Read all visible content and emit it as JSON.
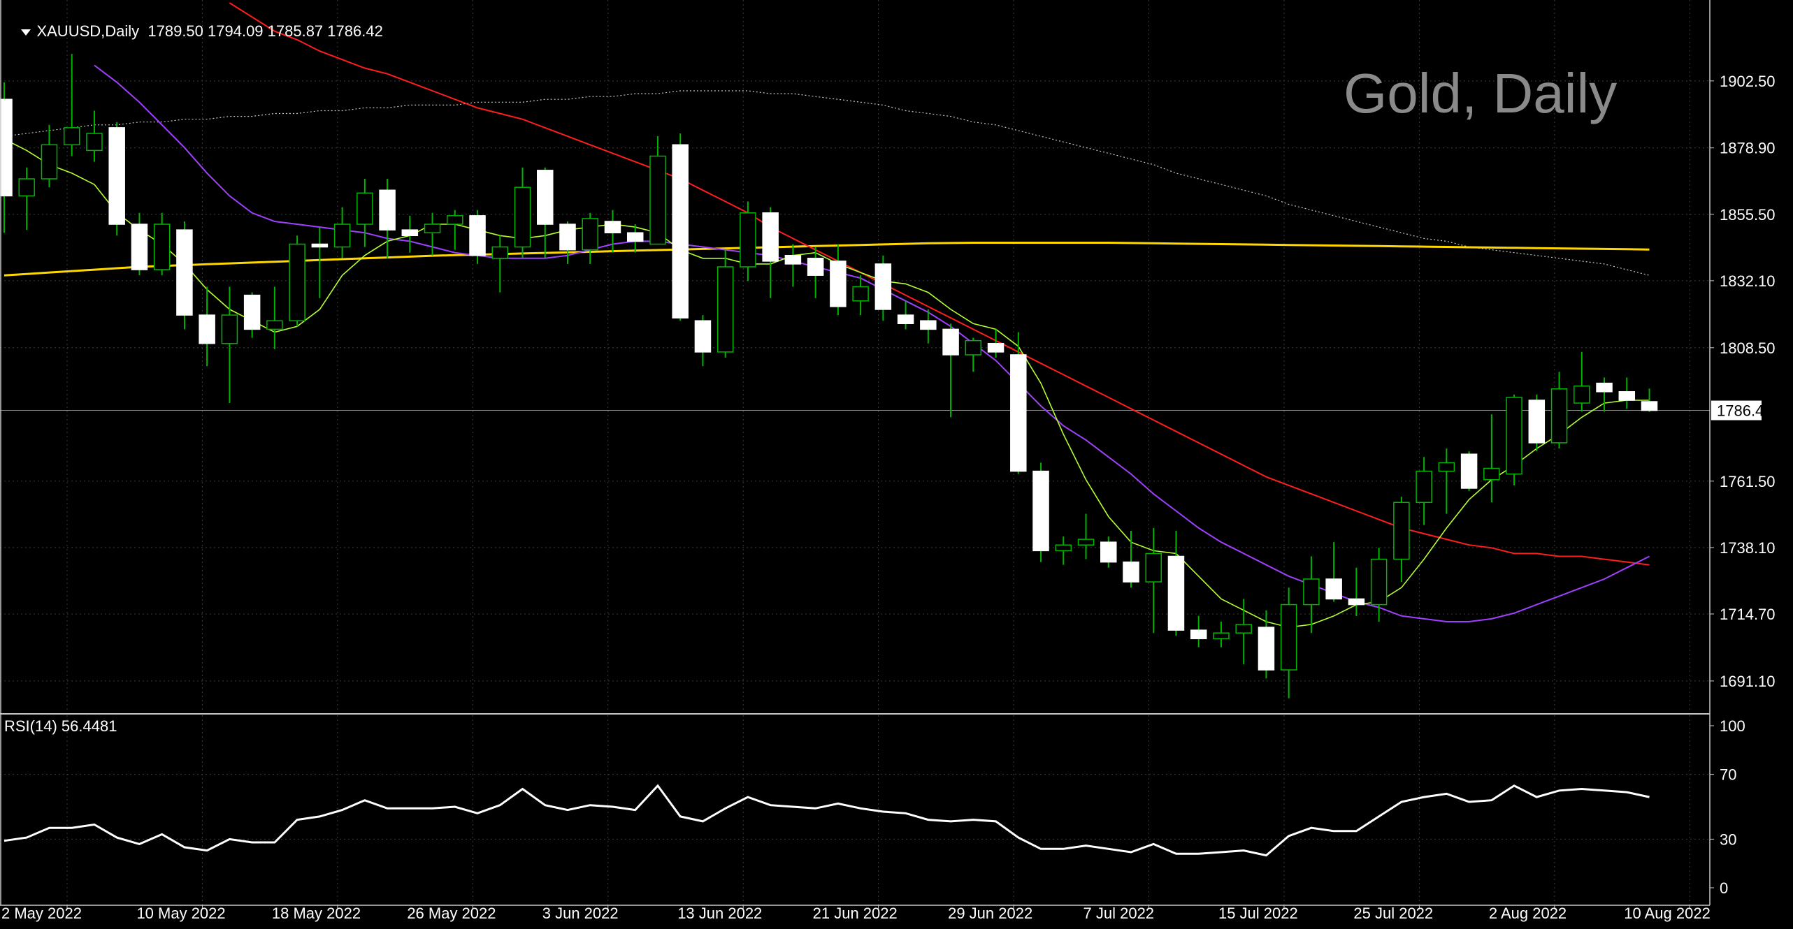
{
  "header": {
    "symbol_line": "XAUUSD,Daily  1789.50 1794.09 1785.87 1786.42",
    "watermark": "Gold, Daily",
    "rsi_label": "RSI(14) 56.4481"
  },
  "colors": {
    "background": "#000000",
    "grid": "#3c3c3c",
    "candle": "#ffffff",
    "wick": "#00b400",
    "ma_fast": "#b4ff32",
    "ma_mid": "#a040ff",
    "ma_slow": "#ff1e1e",
    "ma_long": "#c8c8c8",
    "ma_yellow": "#ffd700",
    "rsi_line": "#ffffff",
    "price_tag_bg": "#ffffff",
    "price_tag_text": "#000000"
  },
  "chart_data": [
    {
      "type": "candlestick",
      "title": "XAUUSD,Daily",
      "yticks": [
        "1902.50",
        "1878.90",
        "1855.50",
        "1832.10",
        "1808.50",
        "1786.42",
        "1761.50",
        "1738.10",
        "1714.70",
        "1691.10"
      ],
      "ylim": [
        1680,
        1931
      ],
      "current_price": 1786.42,
      "xticks": [
        "2 May 2022",
        "10 May 2022",
        "18 May 2022",
        "26 May 2022",
        "3 Jun 2022",
        "13 Jun 2022",
        "21 Jun 2022",
        "29 Jun 2022",
        "7 Jul 2022",
        "15 Jul 2022",
        "25 Jul 2022",
        "2 Aug 2022",
        "10 Aug 2022"
      ],
      "xtick_index": [
        0,
        6,
        12,
        18,
        24,
        30,
        36,
        42,
        48,
        54,
        60,
        66,
        72
      ],
      "grid": true,
      "candles": [
        [
          1896,
          1902,
          1849,
          1862
        ],
        [
          1862,
          1872,
          1850,
          1868
        ],
        [
          1868,
          1887,
          1865,
          1880
        ],
        [
          1880,
          1912,
          1876,
          1886
        ],
        [
          1878,
          1892,
          1874,
          1884
        ],
        [
          1886,
          1888,
          1848,
          1852
        ],
        [
          1852,
          1856,
          1834,
          1836
        ],
        [
          1836,
          1856,
          1834,
          1852
        ],
        [
          1850,
          1853,
          1815,
          1820
        ],
        [
          1820,
          1830,
          1802,
          1810
        ],
        [
          1810,
          1830,
          1789,
          1820
        ],
        [
          1827,
          1828,
          1812,
          1815
        ],
        [
          1815,
          1830,
          1808,
          1818
        ],
        [
          1818,
          1848,
          1816,
          1845
        ],
        [
          1845,
          1851,
          1826,
          1844
        ],
        [
          1844,
          1858,
          1840,
          1852
        ],
        [
          1852,
          1868,
          1844,
          1863
        ],
        [
          1864,
          1868,
          1840,
          1850
        ],
        [
          1850,
          1855,
          1842,
          1848
        ],
        [
          1849,
          1856,
          1841,
          1852
        ],
        [
          1852,
          1857,
          1843,
          1855
        ],
        [
          1855,
          1857,
          1838,
          1841
        ],
        [
          1840,
          1848,
          1828,
          1844
        ],
        [
          1844,
          1872,
          1840,
          1865
        ],
        [
          1871,
          1872,
          1840,
          1852
        ],
        [
          1852,
          1853,
          1838,
          1843
        ],
        [
          1843,
          1856,
          1838,
          1854
        ],
        [
          1853,
          1857,
          1842,
          1849
        ],
        [
          1849,
          1852,
          1842,
          1846
        ],
        [
          1845,
          1883,
          1845,
          1876
        ],
        [
          1880,
          1884,
          1818,
          1819
        ],
        [
          1818,
          1820,
          1802,
          1807
        ],
        [
          1807,
          1843,
          1805,
          1837
        ],
        [
          1837,
          1860,
          1832,
          1856
        ],
        [
          1856,
          1858,
          1826,
          1839
        ],
        [
          1841,
          1845,
          1830,
          1838
        ],
        [
          1840,
          1844,
          1826,
          1834
        ],
        [
          1839,
          1845,
          1820,
          1823
        ],
        [
          1825,
          1834,
          1820,
          1830
        ],
        [
          1838,
          1841,
          1818,
          1822
        ],
        [
          1820,
          1825,
          1815,
          1817
        ],
        [
          1818,
          1822,
          1810,
          1815
        ],
        [
          1815,
          1817,
          1784,
          1806
        ],
        [
          1806,
          1812,
          1800,
          1811
        ],
        [
          1810,
          1815,
          1805,
          1807
        ],
        [
          1806,
          1814,
          1764,
          1765
        ],
        [
          1765,
          1768,
          1733,
          1737
        ],
        [
          1737,
          1742,
          1732,
          1739
        ],
        [
          1739,
          1750,
          1734,
          1741
        ],
        [
          1740,
          1742,
          1731,
          1733
        ],
        [
          1733,
          1744,
          1724,
          1726
        ],
        [
          1726,
          1745,
          1708,
          1736
        ],
        [
          1735,
          1744,
          1707,
          1709
        ],
        [
          1709,
          1714,
          1703,
          1706
        ],
        [
          1706,
          1712,
          1703,
          1708
        ],
        [
          1708,
          1720,
          1697,
          1711
        ],
        [
          1710,
          1716,
          1692,
          1695
        ],
        [
          1695,
          1724,
          1685,
          1718
        ],
        [
          1718,
          1735,
          1708,
          1727
        ],
        [
          1727,
          1740,
          1719,
          1720
        ],
        [
          1720,
          1731,
          1714,
          1718
        ],
        [
          1718,
          1738,
          1712,
          1734
        ],
        [
          1734,
          1756,
          1726,
          1754
        ],
        [
          1754,
          1770,
          1746,
          1765
        ],
        [
          1765,
          1773,
          1750,
          1768
        ],
        [
          1771,
          1772,
          1758,
          1759
        ],
        [
          1762,
          1785,
          1754,
          1766
        ],
        [
          1764,
          1792,
          1760,
          1791
        ],
        [
          1790,
          1792,
          1772,
          1775
        ],
        [
          1775,
          1800,
          1773,
          1794
        ],
        [
          1789,
          1807,
          1786,
          1795
        ],
        [
          1796,
          1798,
          1786,
          1793
        ],
        [
          1793,
          1798,
          1787,
          1790
        ],
        [
          1789.5,
          1794.09,
          1785.87,
          1786.42
        ]
      ],
      "ma_fast": [
        1882,
        1878,
        1873,
        1870,
        1866,
        1856,
        1850,
        1845,
        1838,
        1829,
        1822,
        1818,
        1814,
        1816,
        1822,
        1834,
        1841,
        1846,
        1848,
        1852,
        1852,
        1850,
        1848,
        1847,
        1848,
        1850,
        1851,
        1852,
        1851,
        1849,
        1843,
        1840,
        1840,
        1838,
        1838,
        1841,
        1842,
        1838,
        1835,
        1832,
        1831,
        1828,
        1822,
        1817,
        1815,
        1809,
        1796,
        1778,
        1762,
        1749,
        1740,
        1737,
        1736,
        1728,
        1720,
        1716,
        1712,
        1710,
        1711,
        1714,
        1718,
        1719,
        1724,
        1734,
        1745,
        1755,
        1762,
        1767,
        1773,
        1778,
        1784,
        1789,
        1790,
        1790
      ],
      "ma_mid": [
        null,
        null,
        null,
        null,
        1908,
        1902,
        1895,
        1887,
        1879,
        1870,
        1862,
        1856,
        1853,
        1852,
        1851,
        1850,
        1849,
        1847,
        1846,
        1844,
        1842,
        1841,
        1840,
        1840,
        1840,
        1841,
        1843,
        1845,
        1846,
        1846,
        1845,
        1844,
        1843,
        1842,
        1841,
        1839,
        1837,
        1835,
        1833,
        1829,
        1825,
        1821,
        1816,
        1810,
        1804,
        1796,
        1788,
        1781,
        1776,
        1770,
        1764,
        1757,
        1751,
        1745,
        1740,
        1736,
        1732,
        1728,
        1725,
        1722,
        1719,
        1717,
        1714,
        1713,
        1712,
        1712,
        1713,
        1715,
        1718,
        1721,
        1724,
        1727,
        1731,
        1735
      ],
      "ma_slow": [
        null,
        null,
        null,
        null,
        null,
        null,
        null,
        null,
        null,
        null,
        1930,
        1925,
        1920,
        1917,
        1913,
        1910,
        1907,
        1905,
        1902,
        1899,
        1896,
        1893,
        1891,
        1889,
        1886,
        1883,
        1880,
        1877,
        1874,
        1871,
        1868,
        1864,
        1860,
        1856,
        1851,
        1847,
        1843,
        1839,
        1835,
        1831,
        1827,
        1823,
        1819,
        1815,
        1811,
        1807,
        1803,
        1799,
        1795,
        1791,
        1787,
        1783,
        1779,
        1775,
        1771,
        1767,
        1763,
        1760,
        1757,
        1754,
        1751,
        1748,
        1745,
        1743,
        1741,
        1739,
        1738,
        1736,
        1736,
        1735,
        1735,
        1734,
        1733,
        1732
      ],
      "ma_long": [
        1883,
        1884,
        1885,
        1886,
        1887,
        1887,
        1888,
        1888,
        1889,
        1889,
        1890,
        1890,
        1891,
        1891,
        1892,
        1892,
        1893,
        1893,
        1894,
        1894,
        1894,
        1895,
        1895,
        1895,
        1896,
        1896,
        1897,
        1897,
        1898,
        1898,
        1899,
        1899,
        1899,
        1899,
        1898,
        1898,
        1897,
        1896,
        1895,
        1894,
        1892,
        1891,
        1890,
        1888,
        1887,
        1885,
        1883,
        1881,
        1879,
        1877,
        1875,
        1873,
        1870,
        1868,
        1866,
        1864,
        1862,
        1859,
        1857,
        1855,
        1853,
        1851,
        1849,
        1847,
        1846,
        1844,
        1843,
        1842,
        1841,
        1840,
        1839,
        1838,
        1836,
        1834
      ],
      "ma_yellow": [
        1834,
        1834.5,
        1835,
        1835.5,
        1836,
        1836.5,
        1837,
        1837.3,
        1837.6,
        1837.9,
        1838.2,
        1838.5,
        1838.8,
        1839.1,
        1839.4,
        1839.7,
        1840,
        1840.3,
        1840.6,
        1840.9,
        1841.1,
        1841.3,
        1841.5,
        1841.7,
        1841.9,
        1842.1,
        1842.3,
        1842.5,
        1842.7,
        1842.9,
        1843.1,
        1843.3,
        1843.5,
        1843.7,
        1843.9,
        1844.1,
        1844.3,
        1844.5,
        1844.7,
        1844.9,
        1845.1,
        1845.3,
        1845.4,
        1845.5,
        1845.5,
        1845.5,
        1845.5,
        1845.5,
        1845.5,
        1845.5,
        1845.4,
        1845.3,
        1845.2,
        1845.1,
        1845,
        1844.9,
        1844.8,
        1844.7,
        1844.6,
        1844.5,
        1844.4,
        1844.3,
        1844.2,
        1844.1,
        1844,
        1843.9,
        1843.8,
        1843.7,
        1843.6,
        1843.5,
        1843.4,
        1843.3,
        1843.2,
        1843.1
      ]
    },
    {
      "type": "line",
      "title": "RSI(14) 56.4481",
      "yticks": [
        "100",
        "70",
        "30",
        "0"
      ],
      "ylim": [
        0,
        100
      ],
      "grid": true,
      "series": [
        {
          "values": [
            29,
            31,
            37,
            37,
            39,
            31,
            27,
            33,
            25,
            23,
            30,
            28,
            28,
            42,
            44,
            48,
            54,
            49,
            49,
            49,
            50,
            46,
            51,
            61,
            51,
            48,
            51,
            50,
            48,
            63,
            44,
            41,
            49,
            56,
            51,
            50,
            49,
            52,
            49,
            47,
            46,
            42,
            41,
            42,
            41,
            31,
            24,
            24,
            26,
            24,
            22,
            27,
            21,
            21,
            22,
            23,
            20,
            32,
            37,
            35,
            35,
            44,
            53,
            56,
            58,
            53,
            54,
            63,
            56,
            60,
            61,
            60,
            59,
            56
          ]
        }
      ]
    }
  ]
}
